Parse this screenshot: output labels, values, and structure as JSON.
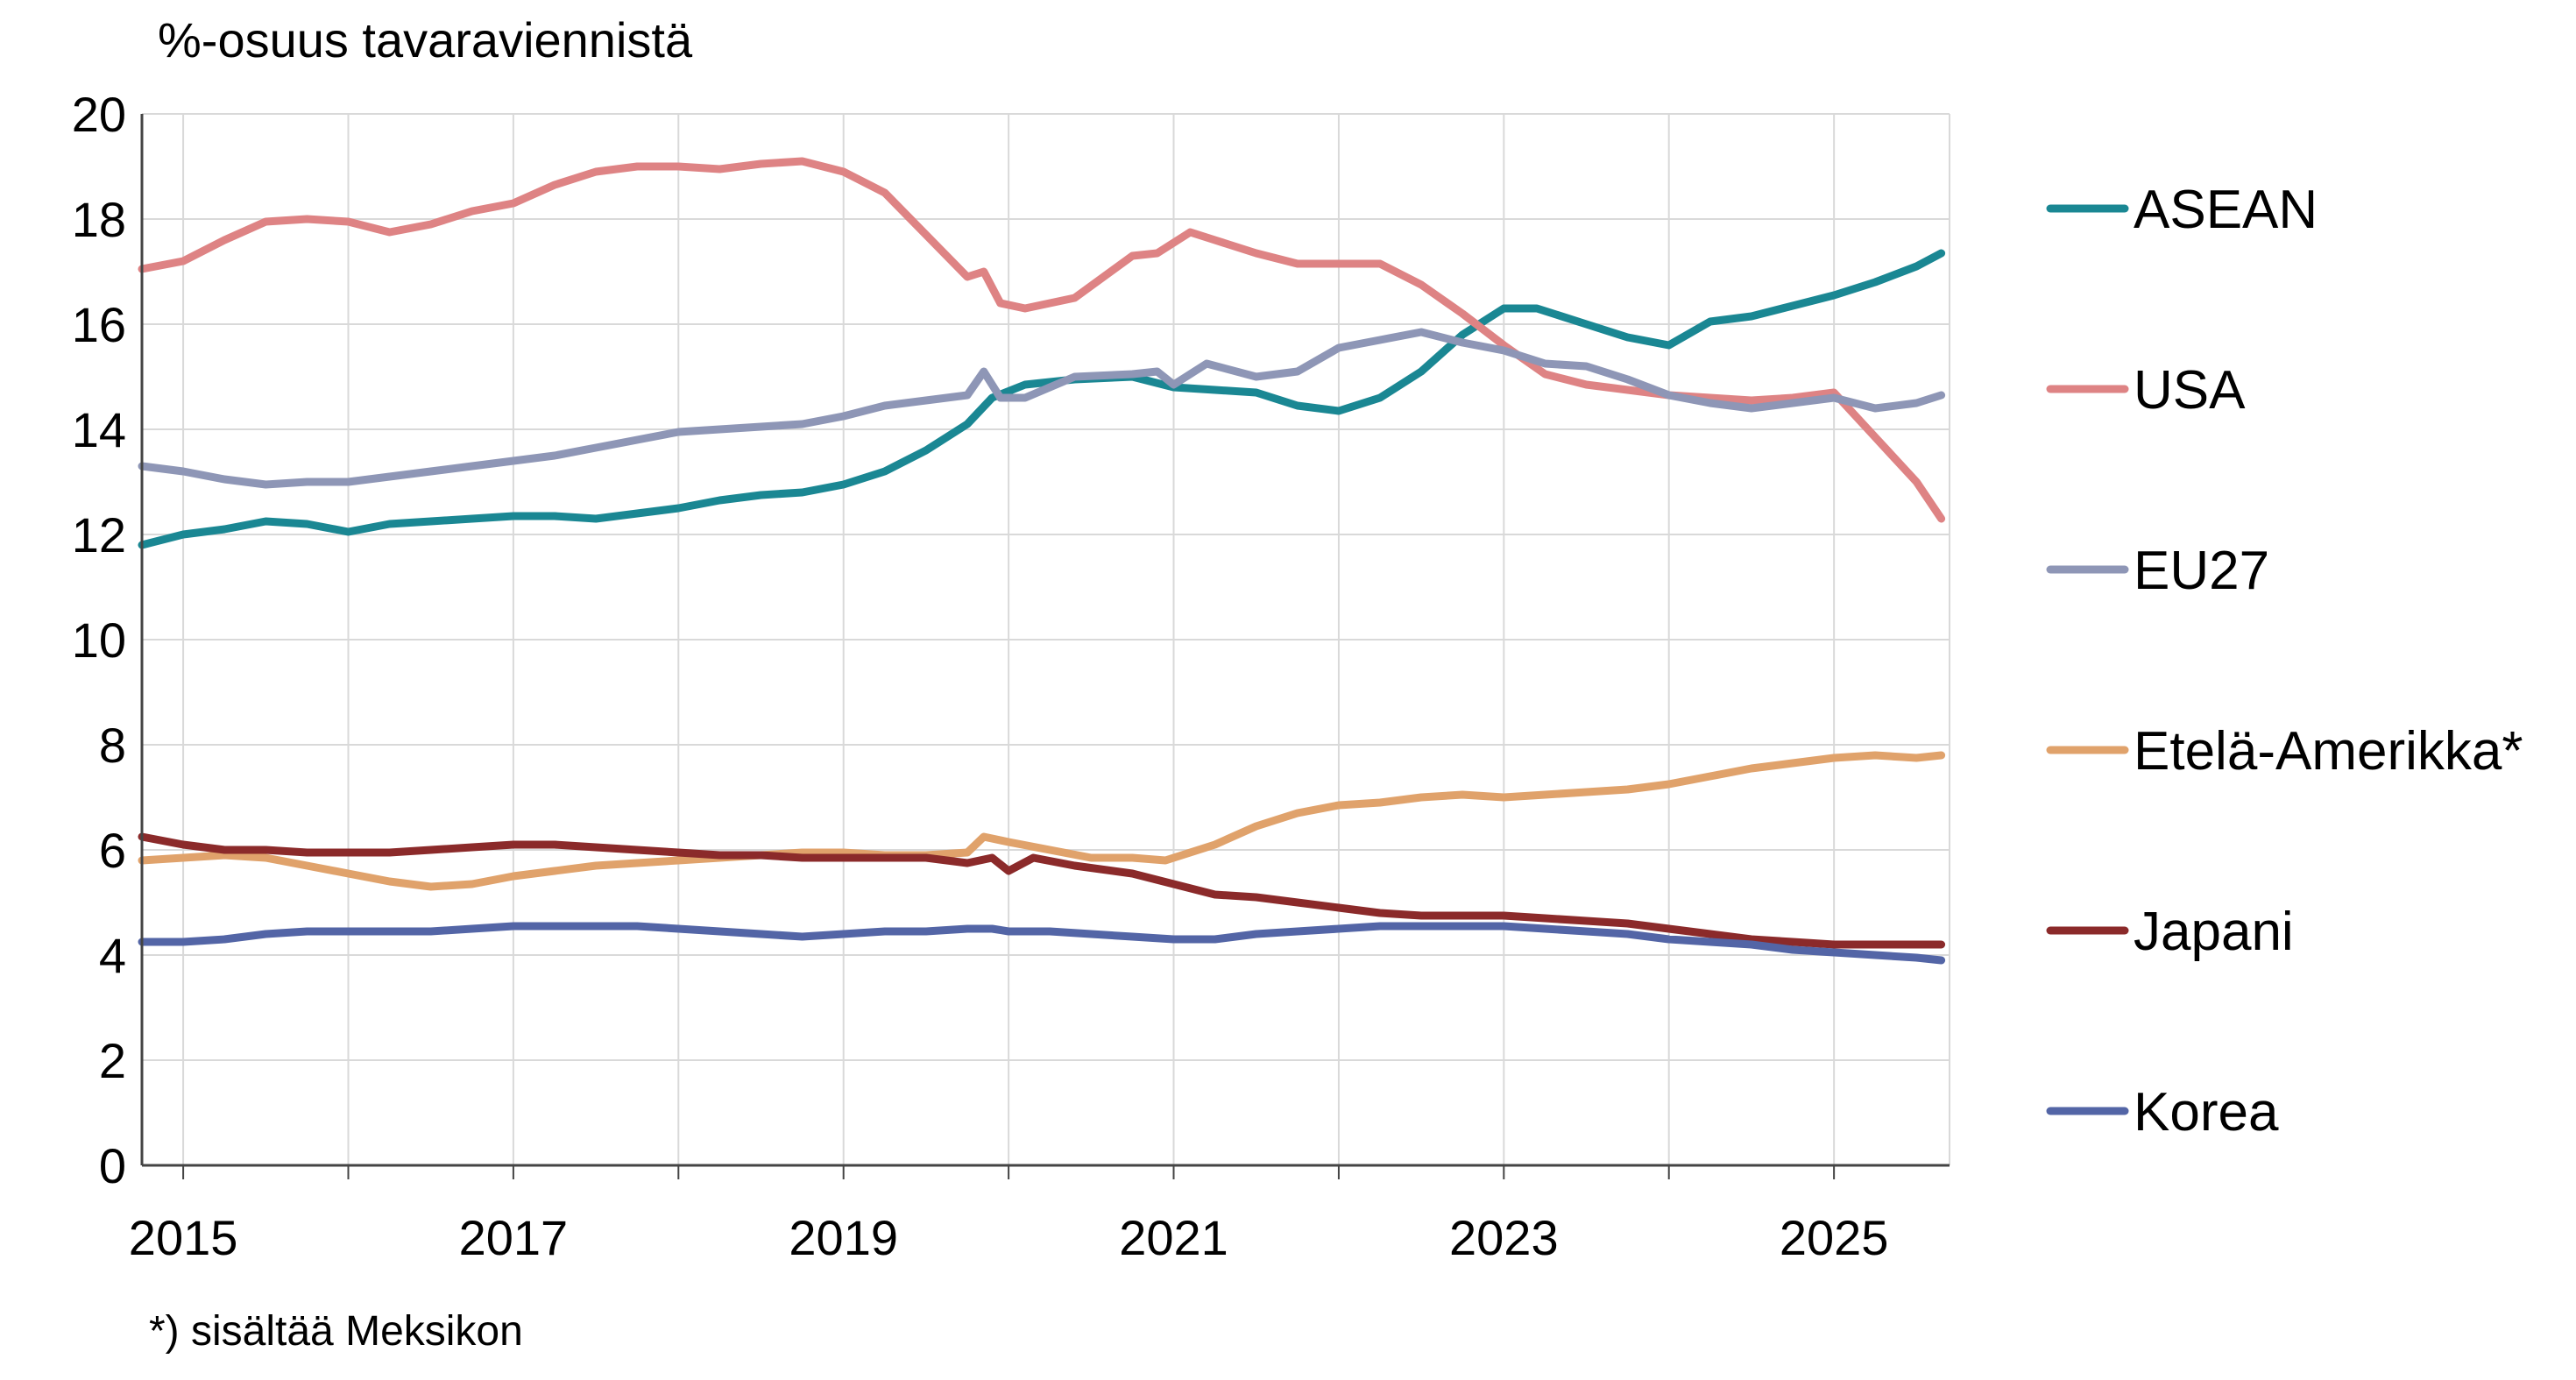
{
  "chart_data": {
    "type": "line",
    "ylabel": "%-osuus tavaraviennistä",
    "footnote": "*) sisältää Meksikon",
    "ylim": [
      0,
      20
    ],
    "yticks": [
      0,
      2,
      4,
      6,
      8,
      10,
      12,
      14,
      16,
      18,
      20
    ],
    "xlim": [
      2014.75,
      2025.7
    ],
    "xticks": [
      2015,
      2017,
      2019,
      2021,
      2023,
      2025
    ],
    "grid": true,
    "legend_placement": "right",
    "series": [
      {
        "name": "ASEAN",
        "color": "#1a8793",
        "x": [
          2014.75,
          2015.0,
          2015.25,
          2015.5,
          2015.75,
          2016.0,
          2016.25,
          2016.5,
          2016.75,
          2017.0,
          2017.25,
          2017.5,
          2017.75,
          2018.0,
          2018.25,
          2018.5,
          2018.75,
          2019.0,
          2019.25,
          2019.5,
          2019.75,
          2019.9,
          2020.1,
          2020.4,
          2020.75,
          2021.0,
          2021.25,
          2021.5,
          2021.75,
          2022.0,
          2022.25,
          2022.5,
          2022.75,
          2023.0,
          2023.2,
          2023.5,
          2023.75,
          2024.0,
          2024.25,
          2024.5,
          2024.75,
          2025.0,
          2025.25,
          2025.5,
          2025.65
        ],
        "y": [
          11.8,
          12.0,
          12.1,
          12.25,
          12.2,
          12.05,
          12.2,
          12.25,
          12.3,
          12.35,
          12.35,
          12.3,
          12.4,
          12.5,
          12.65,
          12.75,
          12.8,
          12.95,
          13.2,
          13.6,
          14.1,
          14.6,
          14.85,
          14.95,
          15.0,
          14.8,
          14.75,
          14.7,
          14.45,
          14.35,
          14.6,
          15.1,
          15.8,
          16.3,
          16.3,
          16.0,
          15.75,
          15.6,
          16.05,
          16.15,
          16.35,
          16.55,
          16.8,
          17.1,
          17.35
        ]
      },
      {
        "name": "USA",
        "color": "#de8384",
        "x": [
          2014.75,
          2015.0,
          2015.25,
          2015.5,
          2015.75,
          2016.0,
          2016.25,
          2016.5,
          2016.75,
          2017.0,
          2017.25,
          2017.5,
          2017.75,
          2018.0,
          2018.25,
          2018.5,
          2018.75,
          2019.0,
          2019.25,
          2019.5,
          2019.75,
          2019.85,
          2019.95,
          2020.1,
          2020.4,
          2020.75,
          2020.9,
          2021.1,
          2021.25,
          2021.5,
          2021.75,
          2022.0,
          2022.25,
          2022.5,
          2022.75,
          2023.0,
          2023.25,
          2023.5,
          2023.75,
          2024.0,
          2024.25,
          2024.5,
          2024.75,
          2025.0,
          2025.25,
          2025.5,
          2025.65
        ],
        "y": [
          17.05,
          17.2,
          17.6,
          17.95,
          18.0,
          17.95,
          17.75,
          17.9,
          18.15,
          18.3,
          18.65,
          18.9,
          19.0,
          19.0,
          18.95,
          19.05,
          19.1,
          18.9,
          18.5,
          17.7,
          16.9,
          17.0,
          16.4,
          16.3,
          16.5,
          17.3,
          17.35,
          17.75,
          17.6,
          17.35,
          17.15,
          17.15,
          17.15,
          16.75,
          16.2,
          15.6,
          15.05,
          14.85,
          14.75,
          14.65,
          14.6,
          14.55,
          14.6,
          14.7,
          13.85,
          13.0,
          12.3
        ]
      },
      {
        "name": "EU27",
        "color": "#8e96b6",
        "x": [
          2014.75,
          2015.0,
          2015.25,
          2015.5,
          2015.75,
          2016.0,
          2016.25,
          2016.5,
          2016.75,
          2017.0,
          2017.25,
          2017.5,
          2017.75,
          2018.0,
          2018.25,
          2018.5,
          2018.75,
          2019.0,
          2019.25,
          2019.5,
          2019.75,
          2019.85,
          2019.95,
          2020.1,
          2020.4,
          2020.75,
          2020.9,
          2021.0,
          2021.2,
          2021.5,
          2021.75,
          2022.0,
          2022.25,
          2022.5,
          2022.75,
          2023.0,
          2023.25,
          2023.5,
          2023.75,
          2024.0,
          2024.25,
          2024.5,
          2024.75,
          2025.0,
          2025.25,
          2025.5,
          2025.65
        ],
        "y": [
          13.3,
          13.2,
          13.05,
          12.95,
          13.0,
          13.0,
          13.1,
          13.2,
          13.3,
          13.4,
          13.5,
          13.65,
          13.8,
          13.95,
          14.0,
          14.05,
          14.1,
          14.25,
          14.45,
          14.55,
          14.65,
          15.1,
          14.6,
          14.6,
          15.0,
          15.05,
          15.1,
          14.85,
          15.25,
          15.0,
          15.1,
          15.55,
          15.7,
          15.85,
          15.65,
          15.5,
          15.25,
          15.2,
          14.95,
          14.65,
          14.5,
          14.4,
          14.5,
          14.6,
          14.4,
          14.5,
          14.65
        ]
      },
      {
        "name": "Etelä-Amerikka*",
        "color": "#e0a26b",
        "x": [
          2014.75,
          2015.0,
          2015.25,
          2015.5,
          2015.75,
          2016.0,
          2016.25,
          2016.5,
          2016.75,
          2017.0,
          2017.25,
          2017.5,
          2017.75,
          2018.0,
          2018.25,
          2018.5,
          2018.75,
          2019.0,
          2019.25,
          2019.5,
          2019.75,
          2019.85,
          2020.0,
          2020.25,
          2020.5,
          2020.75,
          2020.95,
          2021.25,
          2021.5,
          2021.75,
          2022.0,
          2022.25,
          2022.5,
          2022.75,
          2023.0,
          2023.25,
          2023.5,
          2023.75,
          2024.0,
          2024.25,
          2024.5,
          2024.75,
          2025.0,
          2025.25,
          2025.5,
          2025.65
        ],
        "y": [
          5.8,
          5.85,
          5.9,
          5.85,
          5.7,
          5.55,
          5.4,
          5.3,
          5.35,
          5.5,
          5.6,
          5.7,
          5.75,
          5.8,
          5.85,
          5.9,
          5.95,
          5.95,
          5.9,
          5.9,
          5.95,
          6.25,
          6.15,
          6.0,
          5.85,
          5.85,
          5.8,
          6.1,
          6.45,
          6.7,
          6.85,
          6.9,
          7.0,
          7.05,
          7.0,
          7.05,
          7.1,
          7.15,
          7.25,
          7.4,
          7.55,
          7.65,
          7.75,
          7.8,
          7.75,
          7.8
        ]
      },
      {
        "name": "Japani",
        "color": "#8b2a2a",
        "x": [
          2014.75,
          2015.0,
          2015.25,
          2015.5,
          2015.75,
          2016.0,
          2016.25,
          2016.5,
          2016.75,
          2017.0,
          2017.25,
          2017.5,
          2017.75,
          2018.0,
          2018.25,
          2018.5,
          2018.75,
          2019.0,
          2019.25,
          2019.5,
          2019.75,
          2019.9,
          2020.0,
          2020.15,
          2020.4,
          2020.75,
          2021.0,
          2021.25,
          2021.5,
          2021.75,
          2022.0,
          2022.25,
          2022.5,
          2022.75,
          2023.0,
          2023.25,
          2023.5,
          2023.75,
          2024.0,
          2024.25,
          2024.5,
          2024.75,
          2025.0,
          2025.25,
          2025.5,
          2025.65
        ],
        "y": [
          6.25,
          6.1,
          6.0,
          6.0,
          5.95,
          5.95,
          5.95,
          6.0,
          6.05,
          6.1,
          6.1,
          6.05,
          6.0,
          5.95,
          5.9,
          5.9,
          5.85,
          5.85,
          5.85,
          5.85,
          5.75,
          5.85,
          5.6,
          5.85,
          5.7,
          5.55,
          5.35,
          5.15,
          5.1,
          5.0,
          4.9,
          4.8,
          4.75,
          4.75,
          4.75,
          4.7,
          4.65,
          4.6,
          4.5,
          4.4,
          4.3,
          4.25,
          4.2,
          4.2,
          4.2,
          4.2
        ]
      },
      {
        "name": "Korea",
        "color": "#5365a6",
        "x": [
          2014.75,
          2015.0,
          2015.25,
          2015.5,
          2015.75,
          2016.0,
          2016.25,
          2016.5,
          2016.75,
          2017.0,
          2017.25,
          2017.5,
          2017.75,
          2018.0,
          2018.25,
          2018.5,
          2018.75,
          2019.0,
          2019.25,
          2019.5,
          2019.75,
          2019.9,
          2020.0,
          2020.25,
          2020.5,
          2020.75,
          2021.0,
          2021.25,
          2021.5,
          2021.75,
          2022.0,
          2022.25,
          2022.5,
          2022.75,
          2023.0,
          2023.25,
          2023.5,
          2023.75,
          2024.0,
          2024.25,
          2024.5,
          2024.75,
          2025.0,
          2025.25,
          2025.5,
          2025.65
        ],
        "y": [
          4.25,
          4.25,
          4.3,
          4.4,
          4.45,
          4.45,
          4.45,
          4.45,
          4.5,
          4.55,
          4.55,
          4.55,
          4.55,
          4.5,
          4.45,
          4.4,
          4.35,
          4.4,
          4.45,
          4.45,
          4.5,
          4.5,
          4.45,
          4.45,
          4.4,
          4.35,
          4.3,
          4.3,
          4.4,
          4.45,
          4.5,
          4.55,
          4.55,
          4.55,
          4.55,
          4.5,
          4.45,
          4.4,
          4.3,
          4.25,
          4.2,
          4.1,
          4.05,
          4.0,
          3.95,
          3.9
        ]
      }
    ]
  }
}
